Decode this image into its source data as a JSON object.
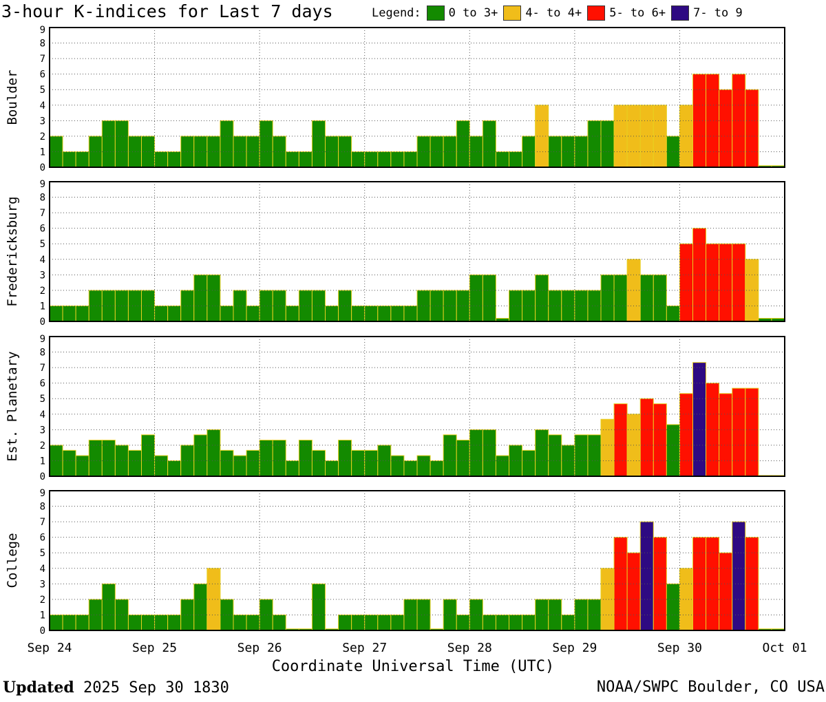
{
  "title": "3-hour K-indices for Last 7 days",
  "legend": {
    "label": "Legend:",
    "items": [
      {
        "label": "0 to 3+",
        "color": "#138a00"
      },
      {
        "label": "4- to 4+",
        "color": "#f0bd1a"
      },
      {
        "label": "5- to 6+",
        "color": "#ff1000"
      },
      {
        "label": "7- to 9",
        "color": "#2e0a82"
      }
    ]
  },
  "footer": {
    "updated_label": "Updated",
    "updated_value": "2025 Sep 30 1830",
    "credit": "NOAA/SWPC Boulder, CO USA"
  },
  "chart_data": {
    "type": "bar",
    "xlabel": "Coordinate Universal Time (UTC)",
    "x_tick_labels": [
      "Sep 24",
      "Sep 25",
      "Sep 26",
      "Sep 27",
      "Sep 28",
      "Sep 29",
      "Sep 30",
      "Oct 01"
    ],
    "y_ticks": [
      0,
      1,
      2,
      3,
      4,
      5,
      6,
      7,
      8,
      9
    ],
    "ylim": [
      0,
      9
    ],
    "grid": true,
    "colors": {
      "quiet": "#138a00",
      "active": "#f0bd1a",
      "storm": "#ff1000",
      "severe": "#2e0a82",
      "outline": "#e8d020"
    },
    "panels": [
      {
        "ylabel": "Boulder",
        "values": [
          2,
          1,
          1,
          2,
          3,
          3,
          2,
          2,
          1,
          1,
          2,
          2,
          2,
          3,
          2,
          2,
          3,
          2,
          1,
          1,
          3,
          2,
          2,
          1,
          1,
          1,
          1,
          1,
          2,
          2,
          2,
          3,
          2,
          3,
          1,
          1,
          2,
          4,
          2,
          2,
          2,
          3,
          3,
          4,
          4,
          4,
          4,
          2,
          4,
          6,
          6,
          5,
          6,
          5,
          0.1,
          0.1
        ]
      },
      {
        "ylabel": "Fredericksburg",
        "values": [
          1,
          1,
          1,
          2,
          2,
          2,
          2,
          2,
          1,
          1,
          2,
          3,
          3,
          1,
          2,
          1,
          2,
          2,
          1,
          2,
          2,
          1,
          2,
          1,
          1,
          1,
          1,
          1,
          2,
          2,
          2,
          2,
          3,
          3,
          0.2,
          2,
          2,
          3,
          2,
          2,
          2,
          2,
          3,
          3,
          4,
          3,
          3,
          1,
          5,
          6,
          5,
          5,
          5,
          4,
          0.2,
          0.2
        ]
      },
      {
        "ylabel": "Est. Planetary",
        "values": [
          2,
          1.67,
          1.33,
          2.33,
          2.33,
          2,
          1.67,
          2.67,
          1.33,
          1,
          2,
          2.67,
          3,
          1.67,
          1.33,
          1.67,
          2.33,
          2.33,
          1,
          2.33,
          1.67,
          1,
          2.33,
          1.67,
          1.67,
          2,
          1.33,
          1,
          1.33,
          1,
          2.67,
          2.33,
          3,
          3,
          1.33,
          2,
          1.67,
          3,
          2.67,
          2,
          2.67,
          2.67,
          3.67,
          4.67,
          4,
          5,
          4.67,
          3.33,
          5.33,
          7.33,
          6,
          5.33,
          5.67,
          5.67,
          0.05,
          0.05
        ]
      },
      {
        "ylabel": "College",
        "values": [
          1,
          1,
          1,
          2,
          3,
          2,
          1,
          1,
          1,
          1,
          2,
          3,
          4,
          2,
          1,
          1,
          2,
          1,
          0.1,
          0.1,
          3,
          0.1,
          1,
          1,
          1,
          1,
          1,
          2,
          2,
          0.1,
          2,
          1,
          2,
          1,
          1,
          1,
          1,
          2,
          2,
          1,
          2,
          2,
          4,
          6,
          5,
          7,
          6,
          3,
          4,
          6,
          6,
          5,
          7,
          6,
          0.1,
          0.1
        ]
      }
    ]
  }
}
